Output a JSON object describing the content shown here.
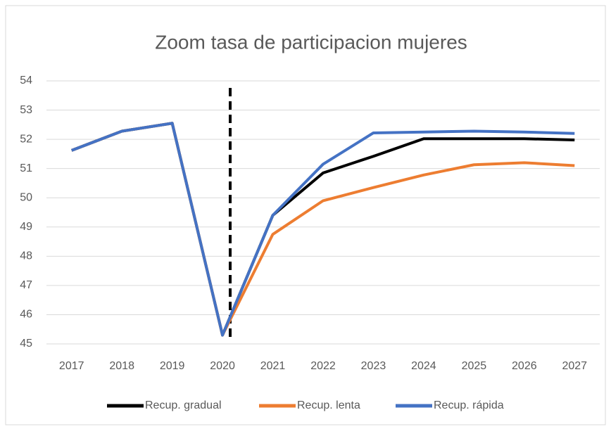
{
  "chart_data": {
    "type": "line",
    "title": "Zoom tasa de participacion mujeres",
    "categories": [
      "2017",
      "2018",
      "2019",
      "2020",
      "2021",
      "2022",
      "2023",
      "2024",
      "2025",
      "2026",
      "2027"
    ],
    "series": [
      {
        "name": "Recup. gradual",
        "color": "#000000",
        "values": [
          51.62,
          52.28,
          52.55,
          45.3,
          49.4,
          50.85,
          51.42,
          52.02,
          52.02,
          52.02,
          51.98
        ]
      },
      {
        "name": "Recup. lenta",
        "color": "#ed7d31",
        "values": [
          51.62,
          52.28,
          52.55,
          45.3,
          48.75,
          49.9,
          50.35,
          50.78,
          51.13,
          51.2,
          51.1
        ]
      },
      {
        "name": "Recup. rápida",
        "color": "#4472c4",
        "values": [
          51.62,
          52.28,
          52.55,
          45.3,
          49.4,
          51.15,
          52.22,
          52.25,
          52.28,
          52.25,
          52.2
        ]
      }
    ],
    "ylim": [
      45,
      54
    ],
    "yticks": [
      45,
      46,
      47,
      48,
      49,
      50,
      51,
      52,
      53,
      54
    ],
    "grid": true,
    "legend": "bottom"
  }
}
